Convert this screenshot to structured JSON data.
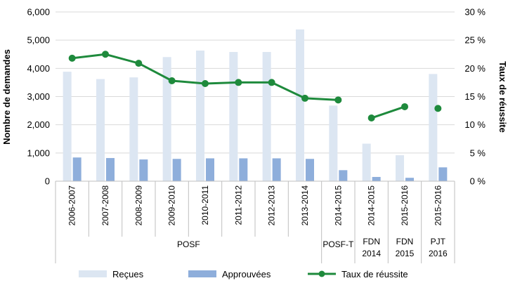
{
  "chart_data": {
    "type": "bar",
    "categories": [
      "2006-2007",
      "2007-2008",
      "2008-2009",
      "2009-2010",
      "2010-2011",
      "2011-2012",
      "2012-2013",
      "2013-2014",
      "2014-2015",
      "2014-2015",
      "2015-2016",
      "2015-2016"
    ],
    "groups": [
      {
        "labels": [
          "POSF"
        ],
        "start": 0,
        "end": 7
      },
      {
        "labels": [
          "POSF-T"
        ],
        "start": 8,
        "end": 8
      },
      {
        "labels": [
          "FDN",
          "2014"
        ],
        "start": 9,
        "end": 9
      },
      {
        "labels": [
          "FDN",
          "2015"
        ],
        "start": 10,
        "end": 10
      },
      {
        "labels": [
          "PJT",
          "2016"
        ],
        "start": 11,
        "end": 11
      }
    ],
    "series": [
      {
        "name": "Reçues",
        "type": "bar",
        "axis": "left",
        "color": "#dce6f2",
        "values": [
          3880,
          3620,
          3680,
          4400,
          4630,
          4580,
          4580,
          5380,
          2680,
          1330,
          920,
          3800
        ]
      },
      {
        "name": "Approuvées",
        "type": "bar",
        "axis": "left",
        "color": "#8eaedb",
        "values": [
          840,
          820,
          770,
          790,
          810,
          810,
          810,
          790,
          390,
          150,
          120,
          490
        ]
      },
      {
        "name": "Taux de réussite",
        "type": "line",
        "axis": "right",
        "color": "#1e8a3c",
        "values": [
          21.8,
          22.5,
          20.9,
          17.8,
          17.3,
          17.5,
          17.5,
          14.7,
          14.4,
          11.2,
          13.2,
          12.9
        ],
        "segments": [
          [
            0,
            8
          ],
          [
            9,
            10
          ],
          [
            11,
            11
          ]
        ]
      }
    ],
    "ylabel": "Nombre de demandes",
    "y2label": "Taux de réussite",
    "ylim": [
      0,
      6000
    ],
    "y2lim": [
      0,
      30
    ],
    "yticks": [
      "0",
      "1,000",
      "2,000",
      "3,000",
      "4,000",
      "5,000",
      "6,000"
    ],
    "y2ticks": [
      "0 %",
      "5 %",
      "10 %",
      "15 %",
      "20 %",
      "25 %",
      "30 %"
    ],
    "grid": true,
    "legend_position": "bottom"
  }
}
